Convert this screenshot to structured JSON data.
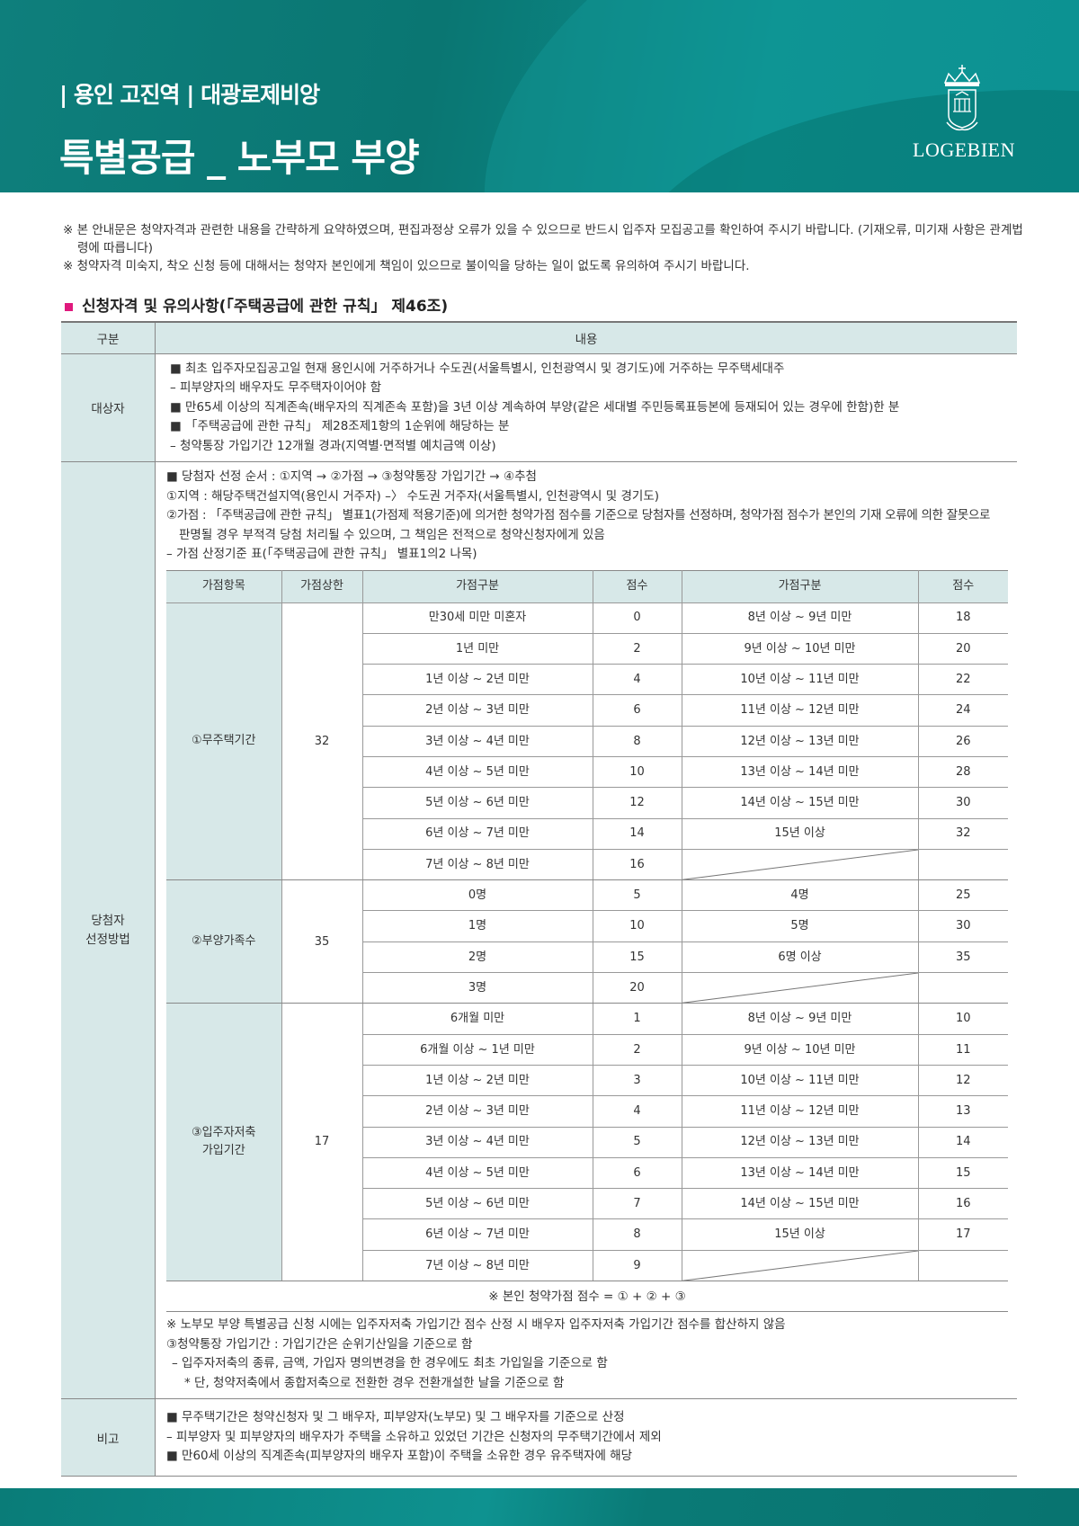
{
  "header": {
    "subtitle": "| 용인 고진역 | 대광로제비앙",
    "title": "특별공급 _ 노부모 부양",
    "logo_text": "LOGEBIEN",
    "brand_color": "#0b807d"
  },
  "notes": [
    "※ 본 안내문은 청약자격과 관련한 내용을 간략하게 요약하였으며, 편집과정상 오류가 있을 수 있으므로 반드시 입주자 모집공고를 확인하여 주시기 바랍니다. (기재오류, 미기재 사항은 관계법령에 따릅니다)",
    "※ 청약자격 미숙지, 착오 신청 등에 대해서는 청약자 본인에게 책임이 있으므로 불이익을 당하는 일이 없도록 유의하여 주시기 바랍니다."
  ],
  "section_title": "신청자격 및 유의사항(「주택공급에 관한 규칙」 제46조)",
  "table": {
    "head": [
      "구분",
      "내용"
    ],
    "target": {
      "label": "대상자",
      "lines": [
        "■ 최초 입주자모집공고일 현재 용인시에 거주하거나 수도권(서울특별시, 인천광역시 및 경기도)에 거주하는 무주택세대주",
        "– 피부양자의 배우자도 무주택자이어야 함",
        "■ 만65세 이상의 직계존속(배우자의 직계존속 포함)을 3년 이상 계속하여 부양(같은 세대별 주민등록표등본에 등재되어 있는 경우에 한함)한 분",
        "■ 「주택공급에 관한 규칙」 제28조제1항의 1순위에 해당하는 분",
        "– 청약통장 가입기간 12개월 경과(지역별·면적별 예치금액 이상)"
      ]
    },
    "selection": {
      "label": "당첨자\n선정방법",
      "lines": [
        "■ 당첨자 선정 순서 : ①지역 → ②가점 → ③청약통장 가입기간 → ④추첨",
        "①지역 : 해당주택건설지역(용인시 거주자) –〉 수도권 거주자(서울특별시, 인천광역시 및 경기도)",
        "②가점 : 「주택공급에 관한 규칙」 별표1(가점제 적용기준)에 의거한 청약가점 점수를 기준으로 당첨자를 선정하며, 청약가점 점수가 본인의 기재 오류에 의한 잘못으로",
        "판명될 경우 부적격 당첨 처리될 수 있으며, 그 책임은 전적으로 청약신청자에게 있음",
        "– 가점 산정기준 표(「주택공급에 관한 규칙」 별표1의2 나목)"
      ],
      "score_head": [
        "가점항목",
        "가점상한",
        "가점구분",
        "점수",
        "가점구분",
        "점수"
      ],
      "groups": [
        {
          "item": "①무주택기간",
          "max": "32",
          "rows": [
            [
              "만30세 미만 미혼자",
              "0",
              "8년 이상 ~ 9년 미만",
              "18"
            ],
            [
              "1년 미만",
              "2",
              "9년 이상 ~ 10년 미만",
              "20"
            ],
            [
              "1년 이상 ~ 2년 미만",
              "4",
              "10년 이상 ~ 11년 미만",
              "22"
            ],
            [
              "2년 이상 ~ 3년 미만",
              "6",
              "11년 이상 ~ 12년 미만",
              "24"
            ],
            [
              "3년 이상 ~ 4년 미만",
              "8",
              "12년 이상 ~ 13년 미만",
              "26"
            ],
            [
              "4년 이상 ~ 5년 미만",
              "10",
              "13년 이상 ~ 14년 미만",
              "28"
            ],
            [
              "5년 이상 ~ 6년 미만",
              "12",
              "14년 이상 ~ 15년 미만",
              "30"
            ],
            [
              "6년 이상 ~ 7년 미만",
              "14",
              "15년 이상",
              "32"
            ],
            [
              "7년 이상 ~ 8년 미만",
              "16",
              "",
              ""
            ]
          ]
        },
        {
          "item": "②부양가족수",
          "max": "35",
          "rows": [
            [
              "0명",
              "5",
              "4명",
              "25"
            ],
            [
              "1명",
              "10",
              "5명",
              "30"
            ],
            [
              "2명",
              "15",
              "6명 이상",
              "35"
            ],
            [
              "3명",
              "20",
              "",
              ""
            ]
          ]
        },
        {
          "item": "③입주자저축\n가입기간",
          "max": "17",
          "rows": [
            [
              "6개월 미만",
              "1",
              "8년 이상 ~ 9년 미만",
              "10"
            ],
            [
              "6개월 이상 ~ 1년 미만",
              "2",
              "9년 이상 ~ 10년 미만",
              "11"
            ],
            [
              "1년 이상 ~ 2년 미만",
              "3",
              "10년 이상 ~ 11년 미만",
              "12"
            ],
            [
              "2년 이상 ~ 3년 미만",
              "4",
              "11년 이상 ~ 12년 미만",
              "13"
            ],
            [
              "3년 이상 ~ 4년 미만",
              "5",
              "12년 이상 ~ 13년 미만",
              "14"
            ],
            [
              "4년 이상 ~ 5년 미만",
              "6",
              "13년 이상 ~ 14년 미만",
              "15"
            ],
            [
              "5년 이상 ~ 6년 미만",
              "7",
              "14년 이상 ~ 15년 미만",
              "16"
            ],
            [
              "6년 이상 ~ 7년 미만",
              "8",
              "15년 이상",
              "17"
            ],
            [
              "7년 이상 ~ 8년 미만",
              "9",
              "",
              ""
            ]
          ]
        }
      ],
      "formula": "※ 본인 청약가점 점수 = ① + ② + ③",
      "after": [
        "※ 노부모 부양 특별공급 신청 시에는 입주자저축 가입기간 점수 산정 시 배우자 입주자저축 가입기간 점수를 합산하지 않음",
        "③청약통장 가입기간 : 가입기간은 순위기산일을 기준으로 함",
        "– 입주자저축의 종류, 금액, 가입자 명의변경을 한 경우에도 최초 가입일을 기준으로 함",
        "* 단, 청약저축에서 종합저축으로 전환한 경우 전환개설한 날을 기준으로 함"
      ]
    },
    "remarks": {
      "label": "비고",
      "lines": [
        "■ 무주택기간은 청약신청자 및 그 배우자, 피부양자(노부모) 및 그 배우자를 기준으로 산정",
        "– 피부양자 및 피부양자의 배우자가 주택을 소유하고 있었던 기간은 신청자의 무주택기간에서 제외",
        "■ 만60세 이상의 직계존속(피부양자의 배우자 포함)이 주택을 소유한 경우 유주택자에 해당"
      ]
    }
  }
}
